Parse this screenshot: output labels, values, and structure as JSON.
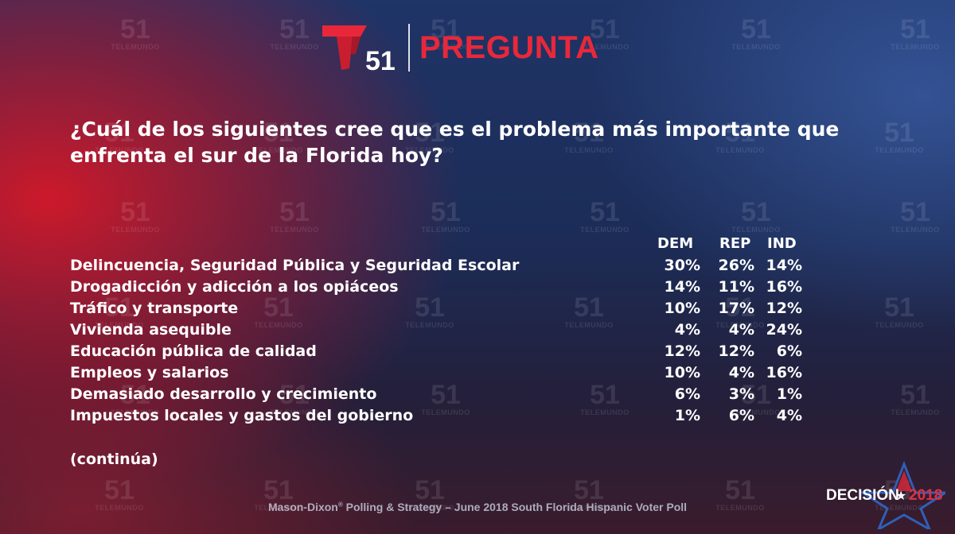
{
  "header": {
    "channel_number": "51",
    "brand_title": "PREGUNTA",
    "watermark_number": "51",
    "watermark_text": "TELEMUNDO"
  },
  "question": "¿Cuál de los siguientes cree que es el problema más importante que enfrenta el sur de la Florida hoy?",
  "table": {
    "columns": [
      "DEM",
      "REP",
      "IND"
    ],
    "rows": [
      {
        "label": "Delincuencia, Seguridad Pública y Seguridad Escolar",
        "values": [
          "30%",
          "26%",
          "14%"
        ]
      },
      {
        "label": "Drogadicción y adicción a los opiáceos",
        "values": [
          "14%",
          "11%",
          "16%"
        ]
      },
      {
        "label": "Tráfico y transporte",
        "values": [
          "10%",
          "17%",
          "12%"
        ]
      },
      {
        "label": "Vivienda asequible",
        "values": [
          "4%",
          "4%",
          "24%"
        ]
      },
      {
        "label": "Educación pública de calidad",
        "values": [
          "12%",
          "12%",
          "6%"
        ]
      },
      {
        "label": "Empleos y salarios",
        "values": [
          "10%",
          "4%",
          "16%"
        ]
      },
      {
        "label": "Demasiado desarrollo y crecimiento",
        "values": [
          "6%",
          "3%",
          "1%"
        ]
      },
      {
        "label": "Impuestos locales y gastos del gobierno",
        "values": [
          "1%",
          "6%",
          "4%"
        ]
      }
    ]
  },
  "continuation": "(continúa)",
  "footer": {
    "pollster": "Mason-Dixon",
    "mark": "®",
    "rest": " Polling & Strategy – June 2018 South Florida Hispanic Voter Poll"
  },
  "badge": {
    "word": "DECISIÓN",
    "year": "2018"
  },
  "colors": {
    "brand_red": "#e8283a",
    "year_red": "#e03040",
    "text_white": "#ffffff"
  },
  "icons": {
    "logo": "telemundo-t-logo",
    "badge_star": "star-icon"
  }
}
